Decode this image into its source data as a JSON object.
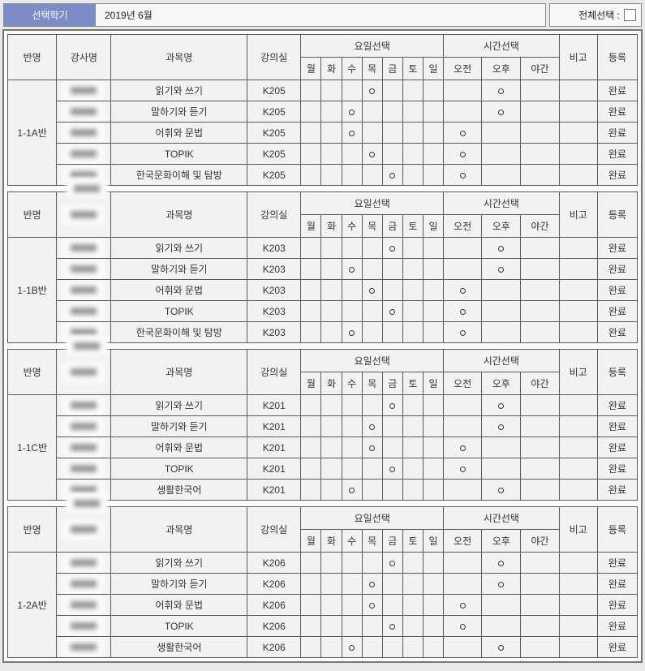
{
  "top_bar": {
    "semester_button": "선택학기",
    "semester_value": "2019년 6월",
    "select_all_label": "전체선택 :"
  },
  "table_headers": {
    "class_name": "반명",
    "instructor": "강사명",
    "subject": "과목명",
    "classroom": "강의실",
    "day_select": "요일선택",
    "time_select": "시간선택",
    "remarks": "비고",
    "register": "등록",
    "days": [
      "월",
      "화",
      "수",
      "목",
      "금",
      "토",
      "일"
    ],
    "times": [
      "오전",
      "오후",
      "야간"
    ]
  },
  "legend": {
    "selected_marker": "○"
  },
  "colors": {
    "accent_blue": "#7b8cc7",
    "cell_bg": "#f2f2f2",
    "table_border": "#5a5a5a",
    "page_bg": "#e9e9e9"
  },
  "sections": [
    {
      "class_name": "1-1A반",
      "instructor_header_redacted": false,
      "rows": [
        {
          "subject": "읽기와 쓰기",
          "room": "K205",
          "day": "목",
          "time": "오후",
          "remarks": "",
          "status": "완료"
        },
        {
          "subject": "말하기와 듣기",
          "room": "K205",
          "day": "수",
          "time": "오후",
          "remarks": "",
          "status": "완료"
        },
        {
          "subject": "어휘와 문법",
          "room": "K205",
          "day": "수",
          "time": "오전",
          "remarks": "",
          "status": "완료"
        },
        {
          "subject": "TOPIK",
          "room": "K205",
          "day": "목",
          "time": "오전",
          "remarks": "",
          "status": "완료"
        },
        {
          "subject": "한국문화이해 및 탐방",
          "room": "K205",
          "day": "금",
          "time": "오전",
          "remarks": "",
          "status": "완료"
        }
      ]
    },
    {
      "class_name": "1-1B반",
      "instructor_header_redacted": true,
      "rows": [
        {
          "subject": "읽기와 쓰기",
          "room": "K203",
          "day": "금",
          "time": "오후",
          "remarks": "",
          "status": "완료"
        },
        {
          "subject": "말하기와 듣기",
          "room": "K203",
          "day": "수",
          "time": "오후",
          "remarks": "",
          "status": "완료"
        },
        {
          "subject": "어휘와 문법",
          "room": "K203",
          "day": "목",
          "time": "오전",
          "remarks": "",
          "status": "완료"
        },
        {
          "subject": "TOPIK",
          "room": "K203",
          "day": "금",
          "time": "오전",
          "remarks": "",
          "status": "완료"
        },
        {
          "subject": "한국문화이해 및 탐방",
          "room": "K203",
          "day": "수",
          "time": "오전",
          "remarks": "",
          "status": "완료"
        }
      ]
    },
    {
      "class_name": "1-1C반",
      "instructor_header_redacted": true,
      "rows": [
        {
          "subject": "읽기와 쓰기",
          "room": "K201",
          "day": "금",
          "time": "오후",
          "remarks": "",
          "status": "완료"
        },
        {
          "subject": "말하기와 듣기",
          "room": "K201",
          "day": "목",
          "time": "오후",
          "remarks": "",
          "status": "완료"
        },
        {
          "subject": "어휘와 문법",
          "room": "K201",
          "day": "목",
          "time": "오전",
          "remarks": "",
          "status": "완료"
        },
        {
          "subject": "TOPIK",
          "room": "K201",
          "day": "금",
          "time": "오전",
          "remarks": "",
          "status": "완료"
        },
        {
          "subject": "생활한국어",
          "room": "K201",
          "day": "수",
          "time": "오후",
          "remarks": "",
          "status": "완료"
        }
      ]
    },
    {
      "class_name": "1-2A반",
      "instructor_header_redacted": true,
      "rows": [
        {
          "subject": "읽기와 쓰기",
          "room": "K206",
          "day": "금",
          "time": "오후",
          "remarks": "",
          "status": "완료"
        },
        {
          "subject": "말하기와 듣기",
          "room": "K206",
          "day": "목",
          "time": "오후",
          "remarks": "",
          "status": "완료"
        },
        {
          "subject": "어휘와 문법",
          "room": "K206",
          "day": "목",
          "time": "오전",
          "remarks": "",
          "status": "완료"
        },
        {
          "subject": "TOPIK",
          "room": "K206",
          "day": "금",
          "time": "오전",
          "remarks": "",
          "status": "완료"
        },
        {
          "subject": "생활한국어",
          "room": "K206",
          "day": "수",
          "time": "오후",
          "remarks": "",
          "status": "완료"
        }
      ]
    }
  ]
}
